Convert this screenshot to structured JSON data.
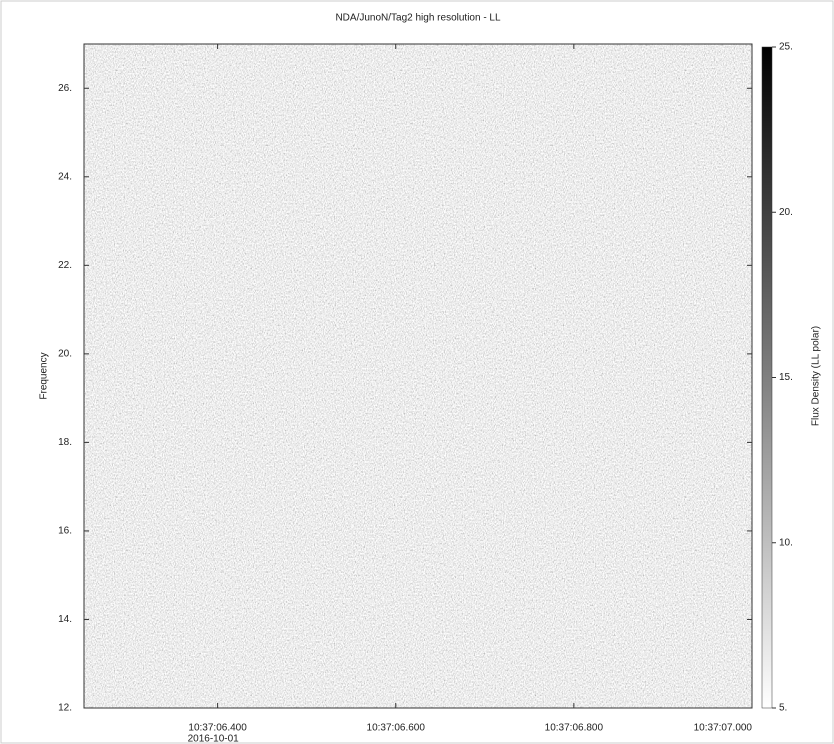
{
  "chart_data": {
    "type": "spectrogram",
    "title": "NDA/JunoN/Tag2 high resolution - LL",
    "ylabel": "Frequency",
    "x_date_label": "2016-10-01",
    "xlim": [
      0.25,
      1.0
    ],
    "xticks": [
      {
        "value": 0.4,
        "label": "10:37:06.400"
      },
      {
        "value": 0.6,
        "label": "10:37:06.600"
      },
      {
        "value": 0.8,
        "label": "10:37:06.800"
      },
      {
        "value": 1.0,
        "label": "10:37:07.000"
      }
    ],
    "ylim": [
      12,
      27
    ],
    "yticks": [
      {
        "value": 12,
        "label": "12."
      },
      {
        "value": 14,
        "label": "14."
      },
      {
        "value": 16,
        "label": "16."
      },
      {
        "value": 18,
        "label": "18."
      },
      {
        "value": 20,
        "label": "20."
      },
      {
        "value": 22,
        "label": "22."
      },
      {
        "value": 24,
        "label": "24."
      },
      {
        "value": 26,
        "label": "26."
      }
    ],
    "colorbar": {
      "label": "Flux Density (LL polar)",
      "lim": [
        5,
        25
      ],
      "colors": [
        "#ffffff",
        "#000000"
      ],
      "ticks": [
        {
          "value": 5,
          "label": "5."
        },
        {
          "value": 10,
          "label": "10."
        },
        {
          "value": 15,
          "label": "15."
        },
        {
          "value": 20,
          "label": "20."
        },
        {
          "value": 25,
          "label": "25."
        }
      ]
    }
  }
}
